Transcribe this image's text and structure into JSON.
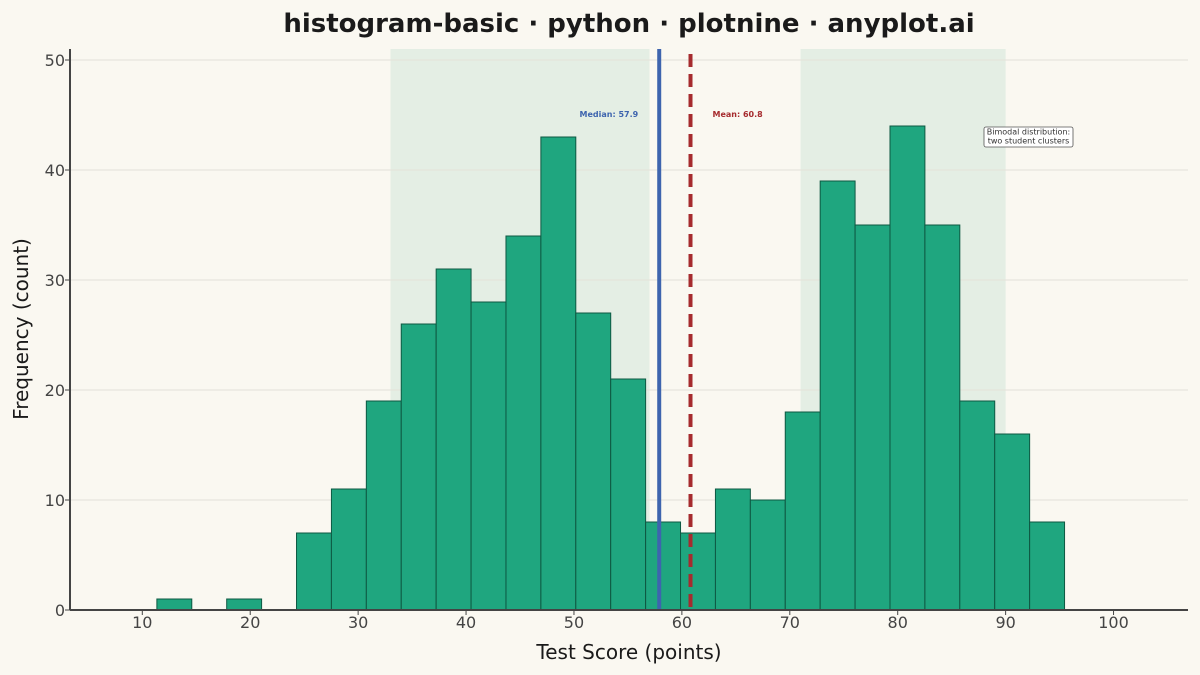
{
  "chart_data": {
    "type": "histogram",
    "title": "histogram-basic · python · plotnine · anyplot.ai",
    "xlabel": "Test Score (points)",
    "ylabel": "Frequency (count)",
    "xlim": [
      3.3,
      106.9
    ],
    "ylim": [
      0,
      51
    ],
    "xticks": [
      10,
      20,
      30,
      40,
      50,
      60,
      70,
      80,
      90,
      100
    ],
    "yticks": [
      0,
      10,
      20,
      30,
      40,
      50
    ],
    "grid": "horizontal",
    "bin_width": 3.235,
    "bins": [
      {
        "x0": 11.35,
        "count": 1
      },
      {
        "x0": 14.585,
        "count": 0
      },
      {
        "x0": 17.82,
        "count": 1
      },
      {
        "x0": 21.055,
        "count": 0
      },
      {
        "x0": 24.29,
        "count": 7
      },
      {
        "x0": 27.525,
        "count": 11
      },
      {
        "x0": 30.76,
        "count": 19
      },
      {
        "x0": 33.995,
        "count": 26
      },
      {
        "x0": 37.23,
        "count": 31
      },
      {
        "x0": 40.465,
        "count": 28
      },
      {
        "x0": 43.7,
        "count": 34
      },
      {
        "x0": 46.935,
        "count": 43
      },
      {
        "x0": 50.17,
        "count": 27
      },
      {
        "x0": 53.405,
        "count": 21
      },
      {
        "x0": 56.64,
        "count": 8
      },
      {
        "x0": 59.875,
        "count": 7
      },
      {
        "x0": 63.11,
        "count": 11
      },
      {
        "x0": 66.345,
        "count": 10
      },
      {
        "x0": 69.58,
        "count": 18
      },
      {
        "x0": 72.815,
        "count": 39
      },
      {
        "x0": 76.05,
        "count": 35
      },
      {
        "x0": 79.285,
        "count": 44
      },
      {
        "x0": 82.52,
        "count": 35
      },
      {
        "x0": 85.755,
        "count": 19
      },
      {
        "x0": 88.99,
        "count": 16
      },
      {
        "x0": 92.225,
        "count": 8
      }
    ],
    "shaded_regions": [
      {
        "x0": 33,
        "x1": 57
      },
      {
        "x0": 71,
        "x1": 90
      }
    ],
    "median": {
      "value": 57.9,
      "label": "Median: 57.9",
      "color": "#3E64AE"
    },
    "mean": {
      "value": 60.8,
      "label": "Mean: 60.8",
      "color": "#A62B2E"
    },
    "annotation": {
      "lines": [
        "Bimodal distribution:",
        "two student clusters"
      ],
      "x": 84.5,
      "y": 43
    },
    "colors": {
      "bar_fill": "#1FA67F",
      "bar_stroke": "#0E5842",
      "shade": "#E4EEE4",
      "background": "#FAF8F1",
      "grid": "#E3E1D9",
      "axis": "#444444"
    }
  }
}
